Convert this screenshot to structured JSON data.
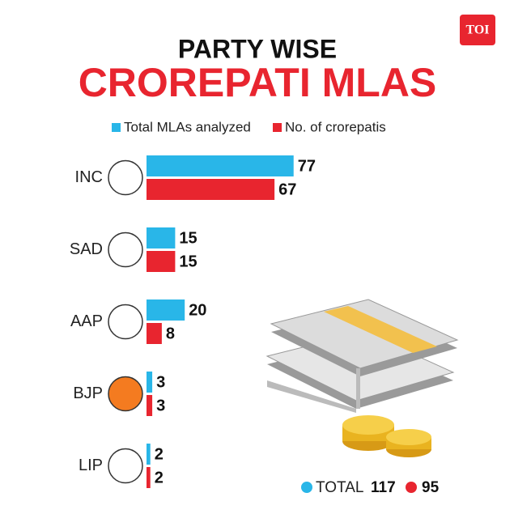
{
  "chart_data": {
    "type": "bar",
    "orientation": "horizontal",
    "logo": "TOI",
    "title": "PARTY WISE",
    "subtitle": "CROREPATI MLAS",
    "categories": [
      "INC",
      "SAD",
      "AAP",
      "BJP",
      "LIP"
    ],
    "series": [
      {
        "name": "Total MLAs analyzed",
        "color": "#29b6e8",
        "values": [
          77,
          15,
          20,
          3,
          2
        ]
      },
      {
        "name": "No. of crorepatis",
        "color": "#e8252f",
        "values": [
          67,
          15,
          8,
          3,
          2
        ]
      }
    ],
    "total_label": "TOTAL",
    "totals": [
      117,
      95
    ]
  }
}
